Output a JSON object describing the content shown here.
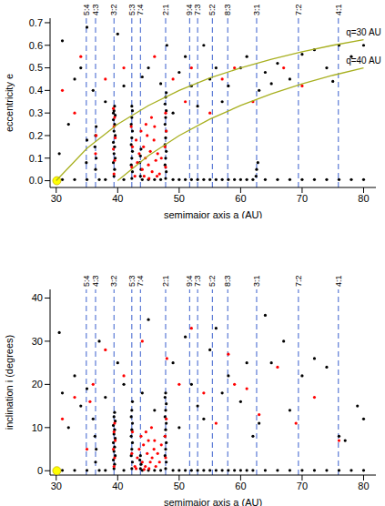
{
  "chart_data": [
    {
      "type": "scatter",
      "x_label": "semimajor axis a (AU)",
      "y_label": "eccentricity e",
      "xlim": [
        29,
        82
      ],
      "xticks": [
        30,
        40,
        50,
        60,
        70,
        80
      ],
      "ylim": [
        -0.03,
        0.72
      ],
      "yticks": [
        {
          "value": 0,
          "label": "0.0"
        },
        0.1,
        0.2,
        0.3,
        0.4,
        0.5,
        0.6,
        0.7
      ],
      "resonances": {
        "labels": [
          "5:4",
          "4:3",
          "3:2",
          "5:3",
          "7:4",
          "2:1",
          "9:4",
          "7:3",
          "5:2",
          "8:3",
          "3:1",
          "7:2",
          "4:1"
        ],
        "color": "#3a5fcd",
        "line_style": "dashed",
        "x": [
          34.9,
          36.4,
          39.4,
          42.3,
          43.7,
          47.8,
          51.7,
          53.0,
          55.4,
          57.9,
          62.6,
          69.4,
          75.9
        ]
      },
      "curves": [
        {
          "label": "q=30 AU",
          "color": "#a8b020",
          "x": [
            30,
            35,
            40,
            45,
            50,
            55,
            60,
            65,
            70,
            75,
            80
          ],
          "values": [
            0,
            0.143,
            0.25,
            0.333,
            0.4,
            0.455,
            0.5,
            0.538,
            0.571,
            0.6,
            0.625
          ]
        },
        {
          "label": "q=40 AU",
          "color": "#a8b020",
          "x": [
            40,
            45,
            50,
            55,
            60,
            65,
            70,
            75,
            80
          ],
          "values": [
            0,
            0.111,
            0.2,
            0.273,
            0.333,
            0.385,
            0.429,
            0.467,
            0.5
          ]
        }
      ],
      "series": [
        {
          "color": "#000000",
          "marker": "point",
          "x": [
            39.4,
            39.5,
            39.3,
            39.6,
            39.4,
            39.5,
            39.3,
            39.6,
            39.4,
            39.5,
            39.3,
            39.6,
            39.4,
            39.5,
            39.3,
            42.3,
            42.4,
            42.2,
            42.3,
            42.4,
            42.2,
            42.3,
            42.4,
            42.2,
            42.3,
            42.4,
            42.3,
            43.7,
            43.8,
            43.6,
            43.7,
            43.8,
            47.8,
            47.9,
            47.7,
            47.8,
            47.9,
            47.7,
            47.8,
            47.9,
            47.7,
            47.8,
            47.9,
            47.7,
            47.8,
            47.9,
            36.4,
            36.5,
            36.3,
            36.4,
            36.5,
            34.9,
            35,
            31,
            33,
            35,
            37,
            38,
            41,
            44,
            45,
            46,
            47,
            49,
            50,
            51,
            52,
            53,
            54,
            55,
            56,
            57,
            58,
            59,
            60,
            61,
            62,
            64,
            66,
            68,
            70,
            72,
            74,
            76,
            78,
            80,
            62.6,
            62.8,
            62.5,
            31,
            33,
            30.5,
            32,
            34,
            36,
            38,
            41,
            44,
            45,
            47,
            49,
            50,
            51,
            52,
            53,
            55,
            57,
            58,
            60,
            61,
            63,
            64,
            66,
            68,
            70,
            72,
            74,
            76,
            78,
            80,
            54,
            48,
            40,
            35,
            56,
            65,
            75
          ],
          "values": [
            0.02,
            0.05,
            0.08,
            0.1,
            0.12,
            0.15,
            0.17,
            0.2,
            0.22,
            0.25,
            0.27,
            0.29,
            0.31,
            0.33,
            0.3,
            0.01,
            0.04,
            0.07,
            0.1,
            0.13,
            0.16,
            0.19,
            0.22,
            0.25,
            0.28,
            0.31,
            0.33,
            0.02,
            0.05,
            0.08,
            0.11,
            0.14,
            0.01,
            0.04,
            0.07,
            0.1,
            0.13,
            0.16,
            0.19,
            0.22,
            0.25,
            0.28,
            0.31,
            0.34,
            0.37,
            0.39,
            0.05,
            0.1,
            0.15,
            0.2,
            0.24,
            0.08,
            0.18,
            0.005,
            0.005,
            0.005,
            0.005,
            0.005,
            0.005,
            0.005,
            0.005,
            0.005,
            0.005,
            0.005,
            0.005,
            0.005,
            0.005,
            0.005,
            0.005,
            0.005,
            0.005,
            0.005,
            0.005,
            0.005,
            0.005,
            0.005,
            0.005,
            0.005,
            0.005,
            0.005,
            0.005,
            0.005,
            0.005,
            0.005,
            0.005,
            0.005,
            0.05,
            0.08,
            0.02,
            0.62,
            0.45,
            0.12,
            0.25,
            0.5,
            0.4,
            0.35,
            0.42,
            0.46,
            0.5,
            0.43,
            0.3,
            0.48,
            0.55,
            0.42,
            0.33,
            0.45,
            0.35,
            0.42,
            0.5,
            0.55,
            0.4,
            0.48,
            0.52,
            0.45,
            0.56,
            0.58,
            0.5,
            0.6,
            0.55,
            0.6,
            0.6,
            0.6,
            0.65,
            0.68,
            0.5,
            0.43,
            0.44
          ]
        },
        {
          "color": "#ff0000",
          "marker": "point",
          "x": [
            39.4,
            39.5,
            39.3,
            39.6,
            39.4,
            39.5,
            39.3,
            42.3,
            42.4,
            42.2,
            47.8,
            47.7,
            47.9,
            47.8,
            42.8,
            43.2,
            43.5,
            44,
            44.2,
            44.5,
            44.8,
            45,
            45.3,
            45.6,
            45.9,
            46.2,
            46.5,
            46.8,
            47.1,
            43.8,
            44.6,
            45.5,
            46,
            43,
            44.3,
            45.1,
            46.4,
            36.4,
            36.5,
            31,
            34,
            38,
            41,
            46,
            49,
            51,
            52,
            55,
            57,
            59,
            62,
            67,
            70,
            33
          ],
          "values": [
            0.03,
            0.09,
            0.14,
            0.19,
            0.24,
            0.28,
            0.32,
            0.06,
            0.15,
            0.24,
            0.06,
            0.15,
            0.22,
            0.3,
            0.02,
            0.08,
            0.12,
            0.05,
            0.15,
            0.1,
            0.2,
            0.07,
            0.13,
            0.04,
            0.18,
            0.09,
            0.12,
            0.03,
            0.1,
            0.22,
            0.25,
            0.28,
            0.24,
            0.18,
            0.02,
            0.01,
            0.02,
            0.12,
            0.2,
            0.4,
            0.55,
            0.45,
            0.5,
            0.55,
            0.45,
            0.35,
            0.5,
            0.3,
            0.45,
            0.5,
            0.35,
            0.5,
            0.42,
            0.3
          ]
        },
        {
          "color": "#ffff00",
          "marker": "circle",
          "x": [
            30.1
          ],
          "values": [
            0
          ]
        }
      ]
    },
    {
      "type": "scatter",
      "x_label": "semimajor axis a (AU)",
      "y_label": "inclination i (degrees)",
      "xlim": [
        29,
        82
      ],
      "xticks": [
        30,
        40,
        50,
        60,
        70,
        80
      ],
      "ylim": [
        -1,
        42
      ],
      "yticks": [
        0,
        10,
        20,
        30,
        40
      ],
      "resonances": {
        "labels": [
          "5:4",
          "4:3",
          "3:2",
          "5:3",
          "7:4",
          "2:1",
          "9:4",
          "7:3",
          "5:2",
          "8:3",
          "3:1",
          "7:2",
          "4:1"
        ],
        "color": "#3a5fcd",
        "line_style": "dashed",
        "x": [
          34.9,
          36.4,
          39.4,
          42.3,
          43.7,
          47.8,
          51.7,
          53.0,
          55.4,
          57.9,
          62.6,
          69.4,
          75.9
        ]
      },
      "curves": [],
      "series": [
        {
          "color": "#000000",
          "marker": "point",
          "x": [
            39.4,
            39.5,
            39.3,
            39.6,
            39.4,
            39.5,
            39.3,
            39.6,
            39.4,
            39.5,
            39.3,
            39.6,
            39.4,
            39.5,
            42.3,
            42.4,
            42.2,
            42.3,
            42.4,
            42.2,
            42.3,
            42.4,
            42.2,
            42.3,
            42.4,
            43.7,
            43.8,
            43.6,
            43.7,
            47.8,
            47.9,
            47.7,
            47.8,
            47.9,
            47.7,
            47.8,
            47.9,
            47.7,
            47.8,
            47.9,
            47.7,
            47.8,
            36.4,
            36.5,
            36.3,
            31,
            33,
            35,
            37,
            38,
            41,
            44,
            45,
            46,
            47,
            49,
            50,
            51,
            52,
            53,
            54,
            55,
            56,
            57,
            58,
            59,
            60,
            61,
            62,
            64,
            66,
            68,
            70,
            72,
            74,
            76,
            78,
            80,
            30.5,
            31,
            32,
            33,
            34,
            35,
            36,
            37,
            38,
            40,
            41,
            44,
            45,
            46,
            49,
            50,
            51,
            52,
            53,
            54,
            55,
            56,
            57,
            58,
            60,
            61,
            62,
            63,
            64,
            65,
            67,
            68,
            70,
            72,
            74,
            76,
            77,
            79,
            80
          ],
          "values": [
            0.5,
            1.5,
            2.5,
            3.5,
            4.5,
            5.5,
            6.5,
            7.5,
            8.5,
            9.5,
            10.5,
            11.5,
            12.5,
            13.5,
            0.5,
            2,
            3.5,
            5,
            6.5,
            8,
            9.5,
            11,
            12.5,
            14,
            16,
            0.5,
            1.5,
            2.5,
            3.5,
            0.5,
            2,
            3.5,
            5,
            6.5,
            8,
            9.5,
            11,
            12.5,
            14,
            15.5,
            17,
            18,
            2,
            5,
            8,
            0.1,
            0.1,
            0.1,
            0.1,
            0.1,
            0.1,
            0.1,
            0.1,
            0.1,
            0.1,
            0.1,
            0.1,
            0.1,
            0.1,
            0.1,
            0.1,
            0.1,
            0.1,
            0.1,
            0.1,
            0.1,
            0.1,
            0.1,
            0.1,
            0.1,
            0.1,
            0.1,
            0.1,
            0.1,
            0.1,
            0.1,
            0.1,
            0.1,
            32,
            18,
            10,
            22,
            15,
            19,
            12,
            30,
            17,
            25,
            20,
            18,
            35,
            14,
            25,
            10,
            31,
            20,
            15,
            12,
            28,
            33,
            18,
            22,
            16,
            25,
            8,
            11,
            36,
            25,
            30,
            14,
            22,
            26,
            24,
            8,
            7,
            15,
            12
          ]
        },
        {
          "color": "#ff0000",
          "marker": "point",
          "x": [
            39.4,
            39.5,
            39.3,
            39.6,
            39.4,
            39.5,
            42.8,
            43.2,
            43.5,
            44,
            44.2,
            44.5,
            44.8,
            45,
            45.3,
            45.6,
            45.9,
            46.2,
            46.5,
            46.8,
            47.1,
            43.8,
            44.6,
            45.5,
            46,
            43,
            44.3,
            45.1,
            47.8,
            47.7,
            47.9,
            42.3,
            42.4,
            31,
            33,
            35,
            36,
            38,
            41,
            44,
            48,
            50,
            52,
            54,
            56,
            58,
            59,
            61,
            63,
            66,
            69,
            72,
            76,
            35.5
          ],
          "values": [
            1,
            3,
            5,
            7,
            9,
            11,
            1,
            3,
            5,
            2,
            6,
            1,
            4,
            7,
            2,
            3,
            5,
            1,
            4,
            2,
            6,
            8,
            9,
            10,
            7,
            0.5,
            0.3,
            0.5,
            3,
            8,
            12,
            4,
            9,
            12,
            17,
            5,
            20,
            28,
            22,
            30,
            26,
            20,
            33,
            18,
            11,
            27,
            20,
            19,
            13,
            24,
            11,
            17,
            7,
            16
          ]
        },
        {
          "color": "#ffff00",
          "marker": "circle",
          "x": [
            30.1
          ],
          "values": [
            0
          ]
        }
      ]
    }
  ]
}
